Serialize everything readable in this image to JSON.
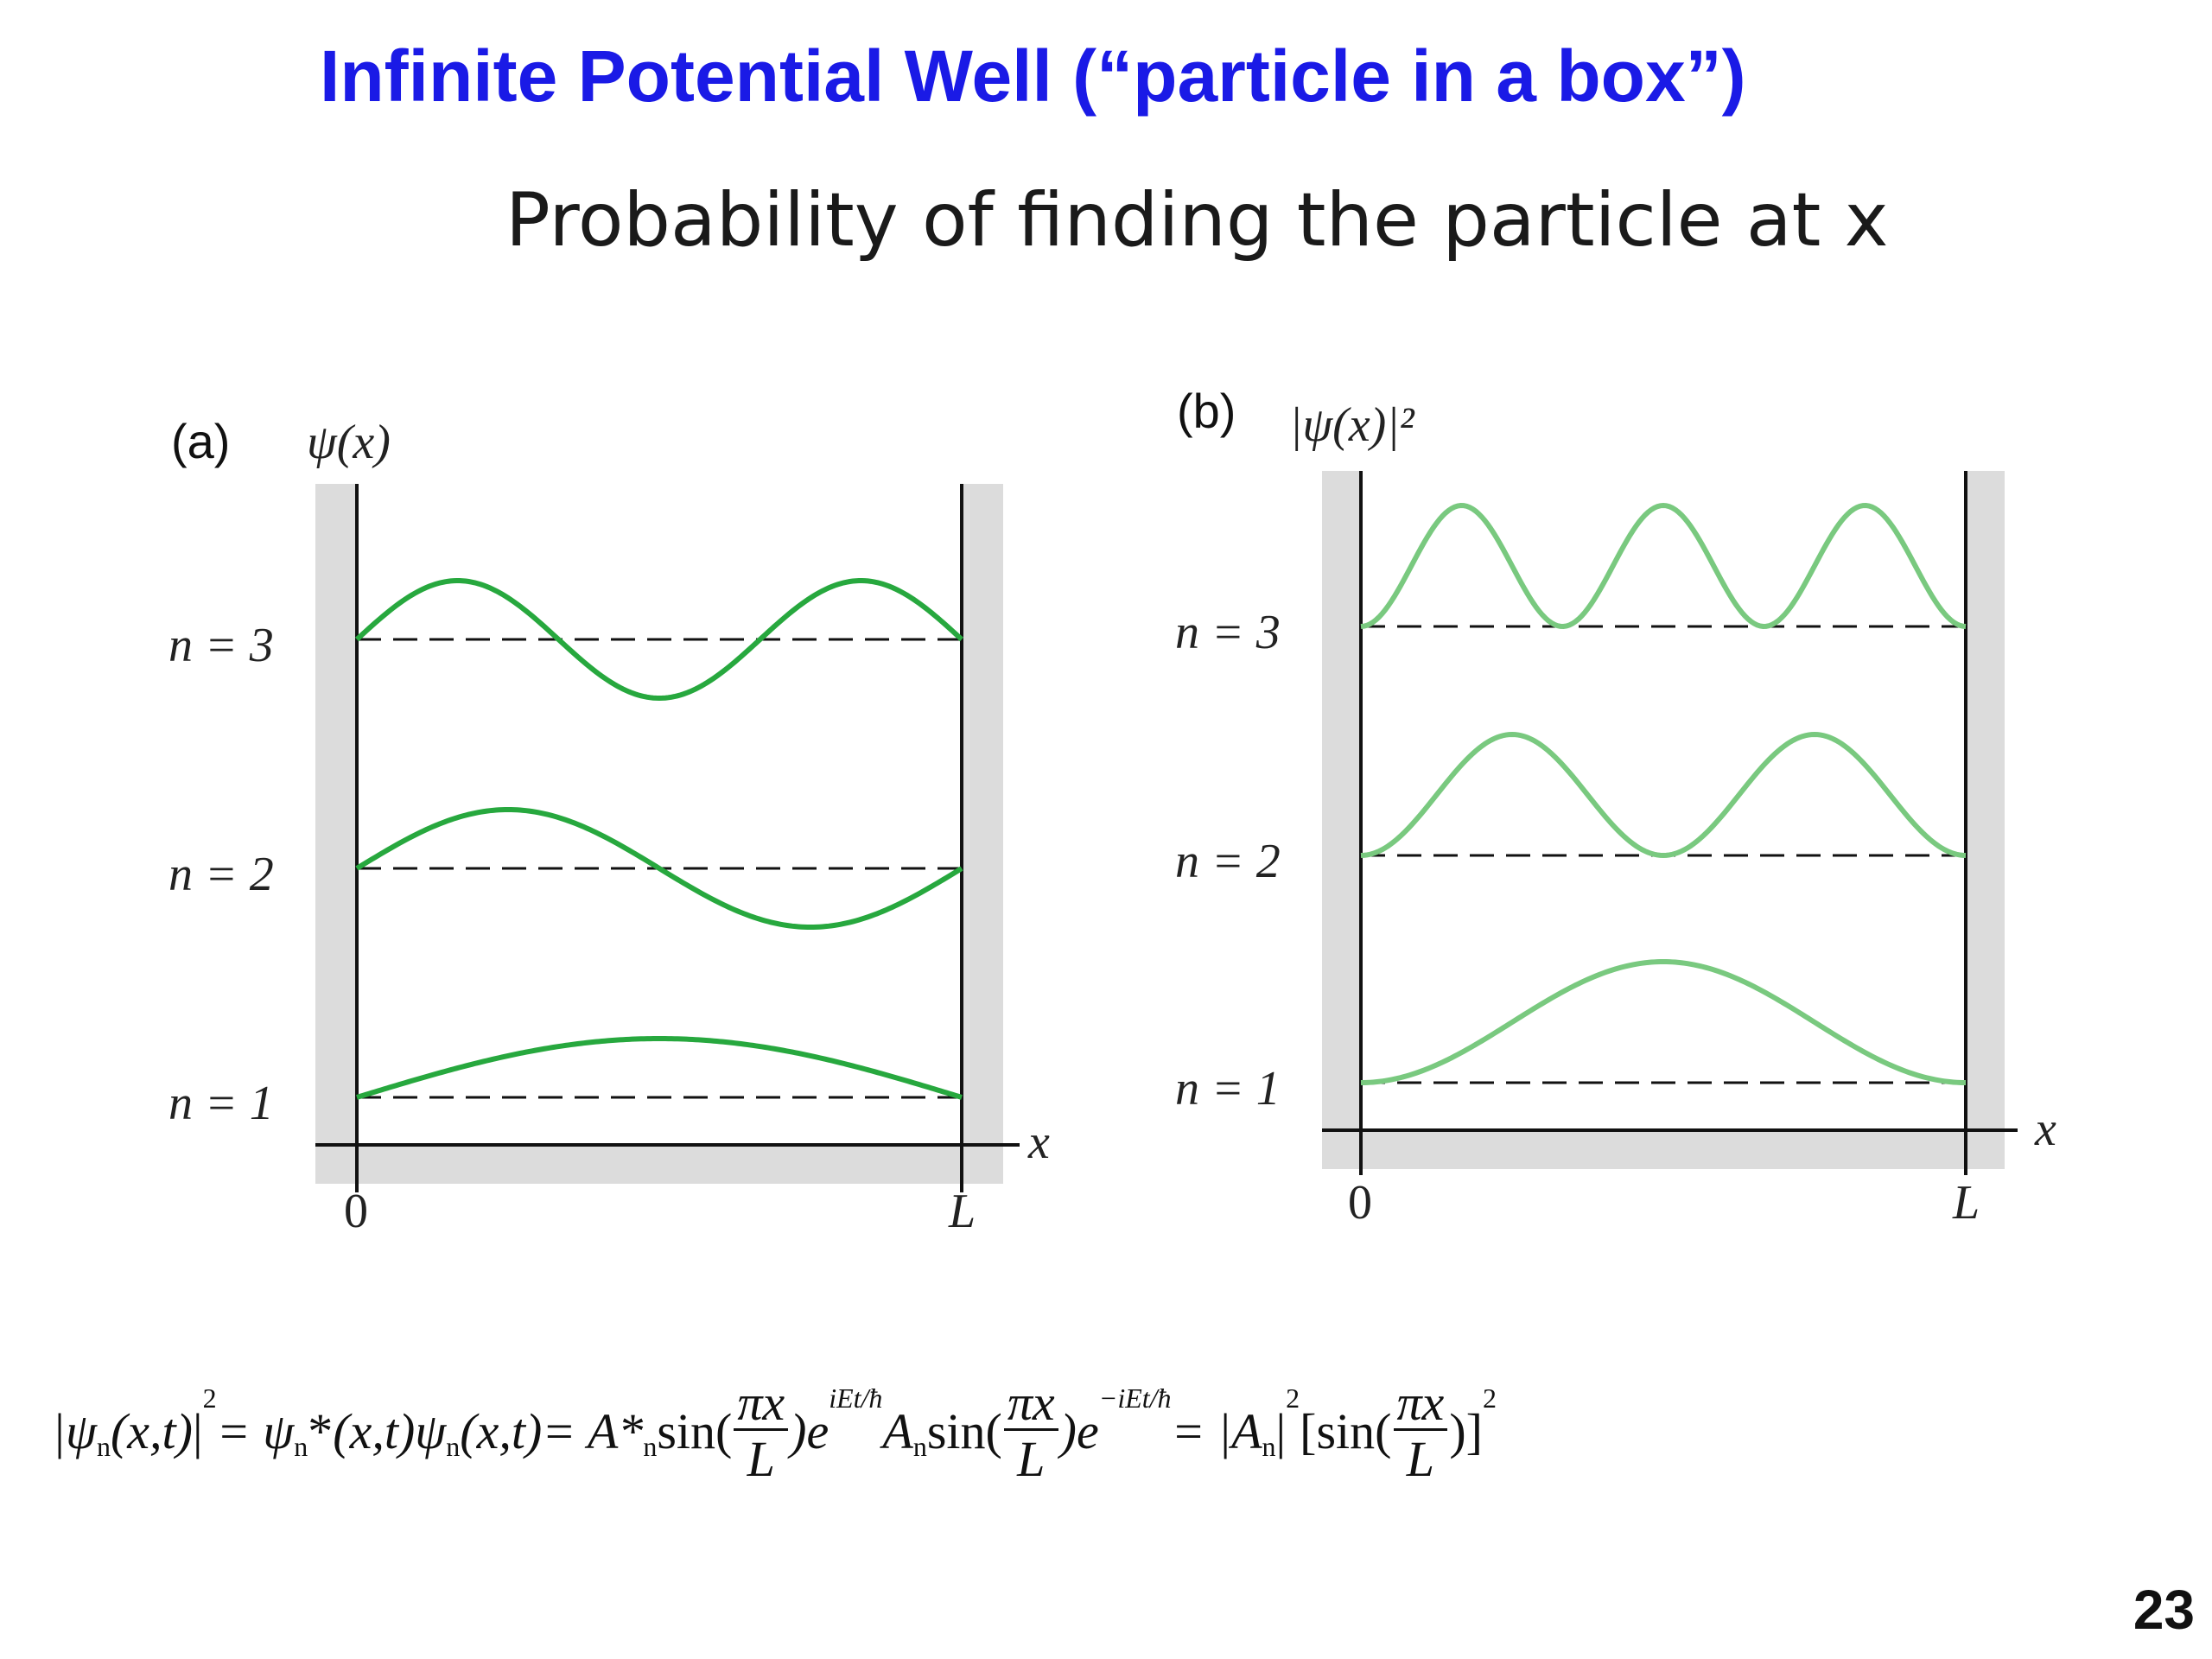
{
  "slide": {
    "title": "Infinite Potential Well (“particle in a box”)",
    "subtitle": "Probability of finding the particle at x",
    "page_number": "23"
  },
  "panel_a": {
    "panel_label": "(a)",
    "ylabel": "ψ(x)",
    "xlabel": "x",
    "ticks": [
      "0",
      "L"
    ],
    "levels": [
      {
        "label": "n = 1",
        "n": 1
      },
      {
        "label": "n = 2",
        "n": 2
      },
      {
        "label": "n = 3",
        "n": 3
      }
    ],
    "curve_color": "#27a83e"
  },
  "panel_b": {
    "panel_label": "(b)",
    "ylabel": "|ψ(x)|²",
    "xlabel": "x",
    "ticks": [
      "0",
      "L"
    ],
    "levels": [
      {
        "label": "n = 1",
        "n": 1
      },
      {
        "label": "n = 2",
        "n": 2
      },
      {
        "label": "n = 3",
        "n": 3
      }
    ],
    "curve_color": "#79c97f"
  },
  "equation": {
    "lhs": "|ψ",
    "args": "(x,t)",
    "sq": "2",
    "eq1": " = ψ",
    "star": "*",
    "args2": "(x,t)ψ",
    "args3": "(x,t)",
    "eq2": " = A*",
    "sin": " sin(",
    "pix": "πx",
    "L": "L",
    "close_e": ")e",
    "exp_pos": "iEt/ħ",
    "A": " A",
    "exp_neg": "−iEt/ħ",
    "eq3": " = |A",
    "sq2": "2",
    "bracket": " [sin(",
    "close_sq": ")]",
    "n": "n"
  },
  "well_color": "#dcdcdc",
  "accent": "#1a1ae6"
}
